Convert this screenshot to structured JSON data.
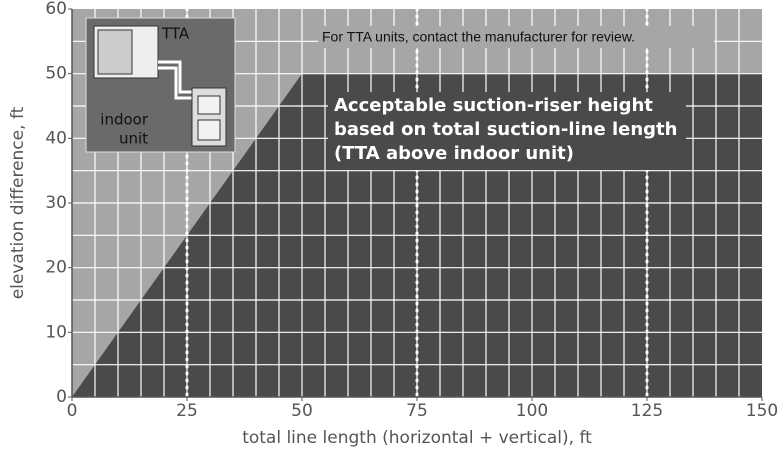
{
  "chart_data": {
    "type": "area",
    "xlabel": "total line length (horizontal + vertical), ft",
    "ylabel": "elevation difference, ft",
    "series": [
      {
        "name": "Acceptable suction-riser height",
        "color": "#4a4a4a",
        "x": [
          0,
          50,
          150
        ],
        "y": [
          0,
          50,
          50
        ]
      }
    ],
    "background_color": "#a6a6a6",
    "xlim": [
      0,
      150
    ],
    "ylim": [
      0,
      60
    ],
    "xticks": [
      0,
      25,
      50,
      75,
      100,
      125,
      150
    ],
    "yticks": [
      0,
      10,
      20,
      30,
      40,
      50,
      60
    ],
    "xgrid": [
      5,
      10,
      15,
      20,
      25,
      30,
      35,
      40,
      45,
      50,
      55,
      60,
      65,
      70,
      75,
      80,
      85,
      90,
      95,
      100,
      105,
      110,
      115,
      120,
      125,
      130,
      135,
      140,
      145
    ],
    "ygrid": [
      5,
      10,
      15,
      20,
      25,
      30,
      35,
      40,
      45,
      50,
      55
    ],
    "reference_lines": [
      25,
      75,
      125
    ],
    "annotations": [
      "For TTA units, contact the manufacturer for review.",
      "Acceptable suction-riser height",
      "based on total suction-line length",
      "(TTA above indoor unit)"
    ],
    "inset_labels": [
      "TTA",
      "indoor",
      "unit"
    ]
  }
}
